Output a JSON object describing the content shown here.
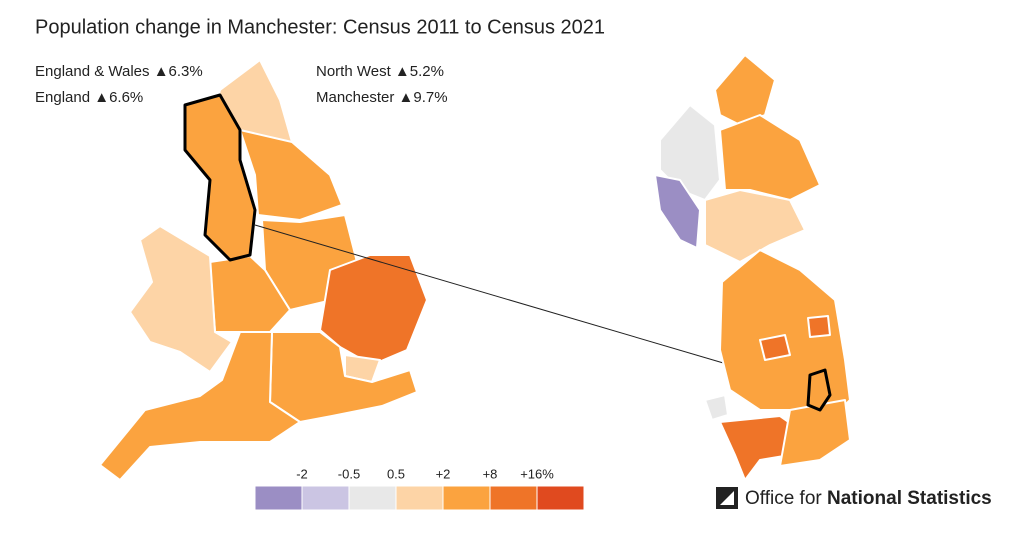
{
  "title": "Population change in Manchester: Census 2011 to Census 2021",
  "stats": [
    {
      "label": "England & Wales",
      "change": "▲6.3%"
    },
    {
      "label": "England",
      "change": "▲6.6%"
    },
    {
      "label": "North West",
      "change": "▲5.2%"
    },
    {
      "label": "Manchester",
      "change": "▲9.7%"
    }
  ],
  "legend": {
    "labels": [
      "-2",
      "-0.5",
      "0.5",
      "+2",
      "+8",
      "+16%"
    ],
    "colors": [
      "#9b8ec4",
      "#cbc5e3",
      "#e8e8e8",
      "#fdd4a6",
      "#fba33f",
      "#ef7428",
      "#e04a1f"
    ]
  },
  "logo": {
    "prefix": "Office for",
    "bold": "National Statistics"
  }
}
